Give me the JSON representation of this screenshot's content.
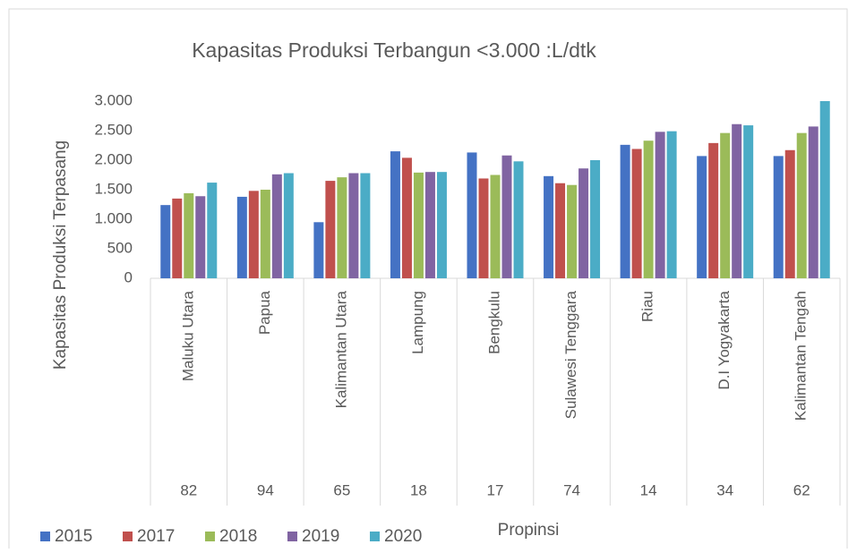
{
  "chart_data": {
    "type": "bar",
    "title": "Kapasitas Produksi Terbangun <3.000 :L/dtk",
    "y_label": "Kapasitas Produksi Terpasang",
    "x_label": "Propinsi",
    "categories": [
      "Maluku Utara",
      "Papua",
      "Kalimantan Utara",
      "Lampung",
      "Bengkulu",
      "Sulawesi Tenggara",
      "Riau",
      "D.I Yogyakarta",
      "Kalimantan Tengah"
    ],
    "category_codes": [
      "82",
      "94",
      "65",
      "18",
      "17",
      "74",
      "14",
      "34",
      "62"
    ],
    "series": [
      {
        "name": "2015",
        "color": "#4472c4",
        "values": [
          1240,
          1380,
          950,
          2150,
          2130,
          1730,
          2260,
          2070,
          2070
        ]
      },
      {
        "name": "2017",
        "color": "#c0504d",
        "values": [
          1350,
          1480,
          1650,
          2040,
          1690,
          1610,
          2190,
          2290,
          2170
        ]
      },
      {
        "name": "2018",
        "color": "#9bbb59",
        "values": [
          1440,
          1500,
          1710,
          1790,
          1750,
          1580,
          2330,
          2460,
          2460
        ]
      },
      {
        "name": "2019",
        "color": "#8064a2",
        "values": [
          1390,
          1760,
          1780,
          1800,
          2080,
          1860,
          2480,
          2610,
          2570
        ]
      },
      {
        "name": "2020",
        "color": "#4bacc6",
        "values": [
          1620,
          1780,
          1780,
          1800,
          1980,
          2000,
          2490,
          2590,
          3000
        ]
      }
    ],
    "ylim": [
      0,
      3000
    ],
    "yticks": [
      0,
      {
        "value": 500,
        "label": "500"
      },
      {
        "value": 1000,
        "label": "1.000"
      },
      {
        "value": 1500,
        "label": "1.500"
      },
      {
        "value": 2000,
        "label": "2.000"
      },
      {
        "value": 2500,
        "label": "2.500"
      },
      {
        "value": 3000,
        "label": "3.000"
      }
    ],
    "grid": false,
    "legend": "bottom-left"
  }
}
